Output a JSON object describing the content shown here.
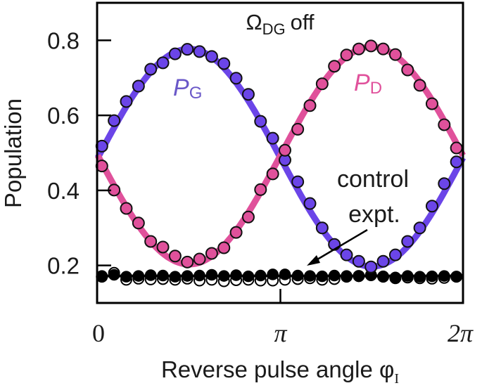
{
  "chart_data": {
    "type": "scatter",
    "title": "Ω_DG off",
    "title_main": "Ω",
    "title_sub": "DG",
    "title_suffix": "off",
    "xlabel": "Reverse pulse angle φ",
    "xlabel_main": "Reverse pulse angle φ",
    "xlabel_sub": "I",
    "ylabel": "Population",
    "xlim": [
      0,
      6.2832
    ],
    "ylim": [
      0.1,
      0.9
    ],
    "grid": false,
    "x_ticks": [
      {
        "value": 0,
        "label": "0"
      },
      {
        "value": 3.1416,
        "label": "π"
      },
      {
        "value": 6.2832,
        "label": "2π"
      }
    ],
    "y_ticks": [
      {
        "value": 0.2,
        "label": "0.2"
      },
      {
        "value": 0.4,
        "label": "0.4"
      },
      {
        "value": 0.6,
        "label": "0.6"
      },
      {
        "value": 0.8,
        "label": "0.8"
      }
    ],
    "x": [
      0.07,
      0.28,
      0.49,
      0.7,
      0.91,
      1.12,
      1.33,
      1.54,
      1.75,
      1.96,
      2.17,
      2.38,
      2.59,
      2.8,
      3.01,
      3.22,
      3.44,
      3.65,
      3.86,
      4.07,
      4.28,
      4.49,
      4.7,
      4.91,
      5.12,
      5.33,
      5.54,
      5.75,
      5.96,
      6.17
    ],
    "series": [
      {
        "name": "P_G",
        "label_main": "P",
        "label_sub": "G",
        "color": "#6b45e8",
        "marker": "filled-circle",
        "values": [
          0.518,
          0.586,
          0.637,
          0.678,
          0.723,
          0.74,
          0.764,
          0.776,
          0.77,
          0.757,
          0.738,
          0.699,
          0.656,
          0.584,
          0.539,
          0.481,
          0.423,
          0.365,
          0.3,
          0.256,
          0.228,
          0.211,
          0.196,
          0.211,
          0.228,
          0.264,
          0.3,
          0.358,
          0.418,
          0.476
        ],
        "fit": {
          "offset": 0.487,
          "amplitude": 0.29,
          "form": "offset + amplitude*sin(phi)"
        }
      },
      {
        "name": "P_D",
        "label_main": "P",
        "label_sub": "D",
        "color": "#e0519b",
        "marker": "filled-circle",
        "values": [
          0.465,
          0.401,
          0.352,
          0.313,
          0.264,
          0.249,
          0.225,
          0.209,
          0.217,
          0.232,
          0.247,
          0.288,
          0.329,
          0.402,
          0.444,
          0.507,
          0.563,
          0.626,
          0.684,
          0.731,
          0.761,
          0.777,
          0.785,
          0.777,
          0.762,
          0.721,
          0.68,
          0.631,
          0.575,
          0.513
        ],
        "fit": {
          "offset": 0.493,
          "amplitude": -0.29,
          "form": "offset + amplitude*sin(phi)"
        }
      },
      {
        "name": "control expt. (filled)",
        "color": "#000000",
        "marker": "filled-circle",
        "values": [
          0.172,
          0.175,
          0.17,
          0.172,
          0.174,
          0.173,
          0.17,
          0.172,
          0.173,
          0.175,
          0.172,
          0.174,
          0.171,
          0.173,
          0.176,
          0.176,
          0.173,
          0.172,
          0.171,
          0.173,
          0.172,
          0.171,
          0.174,
          0.171,
          0.168,
          0.172,
          0.17,
          0.171,
          0.172,
          0.17
        ],
        "fit": {
          "constant": 0.172
        }
      },
      {
        "name": "control expt. (open)",
        "color": "#000000",
        "marker": "open-circle",
        "values": [
          0.17,
          0.18,
          0.162,
          0.165,
          0.163,
          0.164,
          0.162,
          0.165,
          0.16,
          0.162,
          0.158,
          0.161,
          0.162,
          0.16,
          0.16,
          0.162,
          0.164,
          0.166,
          0.162,
          0.164,
          0.17,
          0.172,
          0.174,
          0.17,
          0.166,
          0.168,
          0.166,
          0.165,
          0.167,
          0.17
        ]
      }
    ],
    "annotations": [
      {
        "text_line1": "control",
        "text_line2": "expt.",
        "arrow": true,
        "points_to": "control data near φ≈3.6, population≈0.17"
      }
    ]
  }
}
